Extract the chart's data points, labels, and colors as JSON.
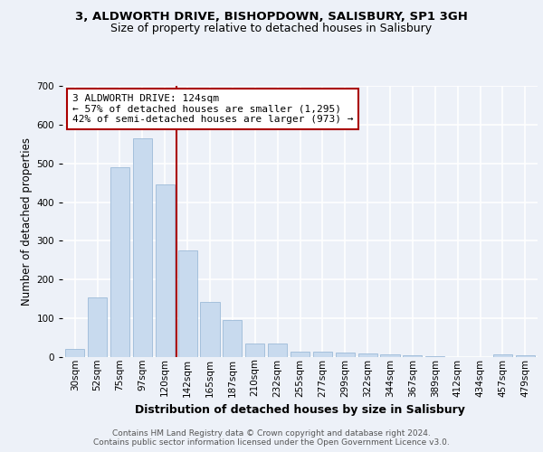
{
  "title_line1": "3, ALDWORTH DRIVE, BISHOPDOWN, SALISBURY, SP1 3GH",
  "title_line2": "Size of property relative to detached houses in Salisbury",
  "xlabel": "Distribution of detached houses by size in Salisbury",
  "ylabel": "Number of detached properties",
  "footer_line1": "Contains HM Land Registry data © Crown copyright and database right 2024.",
  "footer_line2": "Contains public sector information licensed under the Open Government Licence v3.0.",
  "annotation_line1": "3 ALDWORTH DRIVE: 124sqm",
  "annotation_line2": "← 57% of detached houses are smaller (1,295)",
  "annotation_line3": "42% of semi-detached houses are larger (973) →",
  "bar_labels": [
    "30sqm",
    "52sqm",
    "75sqm",
    "97sqm",
    "120sqm",
    "142sqm",
    "165sqm",
    "187sqm",
    "210sqm",
    "232sqm",
    "255sqm",
    "277sqm",
    "299sqm",
    "322sqm",
    "344sqm",
    "367sqm",
    "389sqm",
    "412sqm",
    "434sqm",
    "457sqm",
    "479sqm"
  ],
  "bar_values": [
    22,
    153,
    490,
    565,
    445,
    275,
    142,
    96,
    36,
    34,
    15,
    15,
    12,
    9,
    6,
    4,
    3,
    0,
    0,
    6,
    4
  ],
  "bar_color": "#c8daee",
  "bar_edge_color": "#9dbbd8",
  "vline_x": 4.5,
  "vline_color": "#aa0000",
  "ylim_max": 700,
  "yticks": [
    0,
    100,
    200,
    300,
    400,
    500,
    600,
    700
  ],
  "bg_color": "#edf1f8",
  "grid_color": "#ffffff",
  "ann_box_fc": "#ffffff",
  "ann_box_ec": "#aa0000",
  "title1_fontsize": 9.5,
  "title2_fontsize": 9.0,
  "xlabel_fontsize": 9.0,
  "ylabel_fontsize": 8.5,
  "tick_fontsize": 7.5,
  "ann_fontsize": 8.0,
  "footer_fontsize": 6.5
}
